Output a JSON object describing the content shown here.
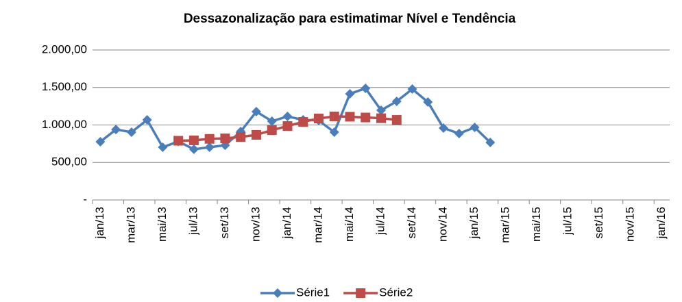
{
  "chart_data": {
    "type": "line",
    "title": "Dessazonalização para estimatimar Nível e Tendência",
    "categories": [
      "jan/13",
      null,
      "mar/13",
      null,
      "mai/13",
      null,
      "jul/13",
      null,
      "set/13",
      null,
      "nov/13",
      null,
      "jan/14",
      null,
      "mar/14",
      null,
      "mai/14",
      null,
      "jul/14",
      null,
      "set/14",
      null,
      "nov/14",
      null,
      "jan/15",
      null,
      "mar/15",
      null,
      "mai/15",
      null,
      "jul/15",
      null,
      "set/15",
      null,
      "nov/15",
      null,
      "jan/16"
    ],
    "series": [
      {
        "name": "Série1",
        "color": "#4a7ebb",
        "marker": "diamond",
        "values": [
          776,
          940,
          904,
          1068,
          703,
          780,
          676,
          703,
          730,
          913,
          1178,
          1050,
          1114,
          1068,
          1060,
          904,
          1415,
          1489,
          1196,
          1315,
          1479,
          1306,
          959,
          886,
          968,
          767,
          null,
          null,
          null,
          null,
          null,
          null,
          null,
          null,
          null,
          null,
          null
        ]
      },
      {
        "name": "Série2",
        "color": "#be4b48",
        "marker": "square",
        "values": [
          null,
          null,
          null,
          null,
          null,
          790,
          795,
          815,
          822,
          840,
          868,
          931,
          986,
          1041,
          1087,
          1114,
          1110,
          1100,
          1090,
          1068,
          null,
          null,
          null,
          null,
          null,
          null,
          null,
          null,
          null,
          null,
          null,
          null,
          null,
          null,
          null,
          null,
          null
        ]
      }
    ],
    "ylim": [
      0,
      2000
    ],
    "yticks": [
      {
        "value": 0,
        "label": "-"
      },
      {
        "value": 500,
        "label": "500,00"
      },
      {
        "value": 1000,
        "label": "1.000,00"
      },
      {
        "value": 1500,
        "label": "1.500,00"
      },
      {
        "value": 2000,
        "label": "2.000,00"
      }
    ],
    "grid": true,
    "legend": "bottom"
  }
}
